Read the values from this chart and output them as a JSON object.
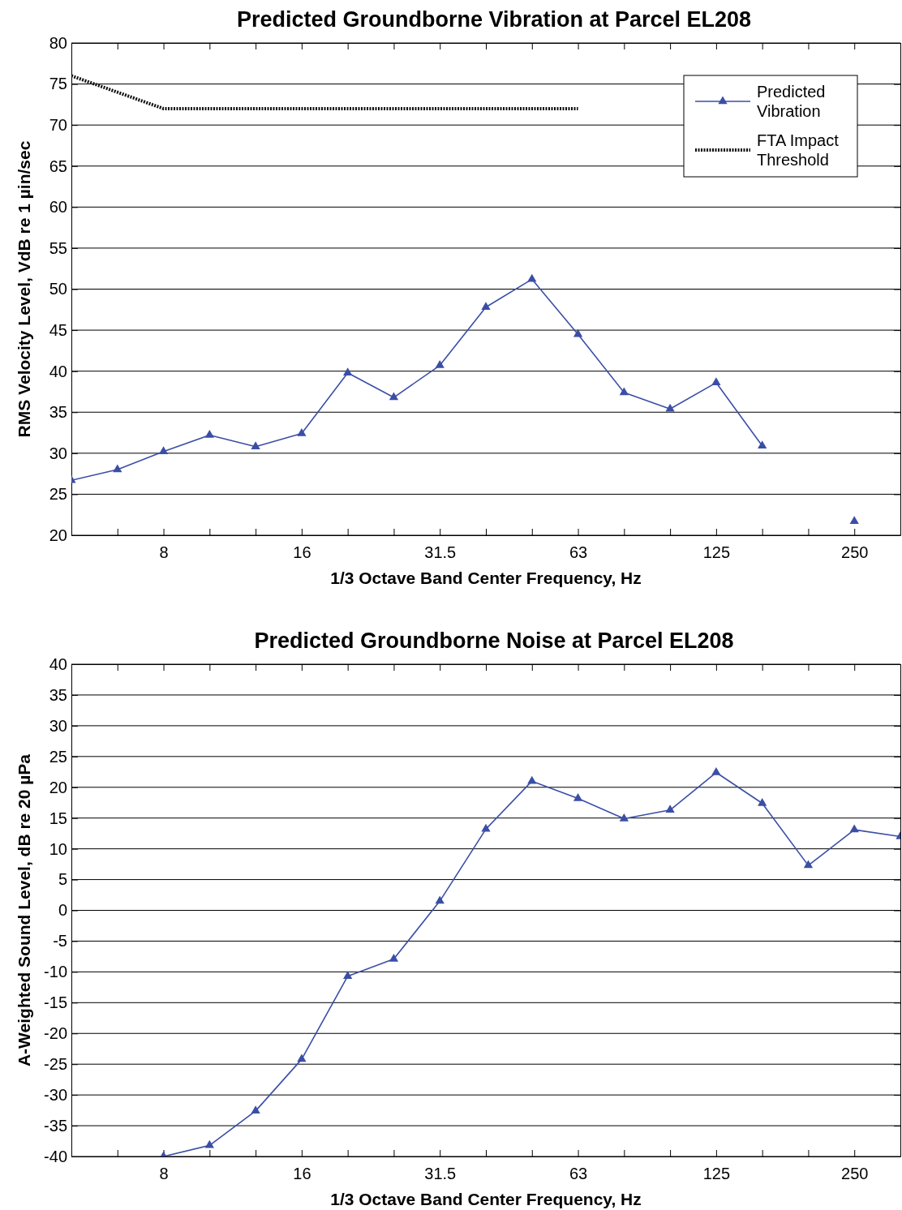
{
  "chart_data": [
    {
      "type": "line",
      "title": "Predicted Groundborne Vibration at Parcel EL208",
      "xlabel": "1/3 Octave Band Center Frequency, Hz",
      "ylabel": "RMS Velocity Level, VdB re 1 µin/sec",
      "categories": [
        null,
        null,
        "8",
        null,
        null,
        "16",
        null,
        null,
        "31.5",
        null,
        null,
        "63",
        null,
        null,
        "125",
        null,
        null,
        "250",
        null
      ],
      "series": [
        {
          "name": "Predicted Vibration",
          "color": "#3b4ea6",
          "marker": "triangle",
          "line_style": "solid",
          "values": [
            26.7,
            28,
            30.2,
            32.2,
            30.8,
            32.4,
            39.8,
            36.8,
            40.7,
            47.8,
            51.2,
            44.5,
            37.4,
            35.4,
            38.6,
            30.9,
            null,
            21.7,
            null
          ]
        },
        {
          "name": "FTA Impact Threshold",
          "color": "#111111",
          "marker": "none",
          "line_style": "dotted",
          "values": [
            76,
            74,
            72,
            72,
            72,
            72,
            72,
            72,
            72,
            72,
            72,
            72,
            null,
            null,
            null,
            null,
            null,
            null,
            null
          ]
        }
      ],
      "ylim": [
        20,
        80
      ],
      "yticks": [
        20,
        25,
        30,
        35,
        40,
        45,
        50,
        55,
        60,
        65,
        70,
        75,
        80
      ],
      "grid": "y",
      "legend": "top right"
    },
    {
      "type": "line",
      "title": "Predicted Groundborne Noise at Parcel EL208",
      "xlabel": "1/3 Octave Band Center Frequency, Hz",
      "ylabel": "A-Weighted Sound Level, dB re 20 µPa",
      "categories": [
        null,
        null,
        "8",
        null,
        null,
        "16",
        null,
        null,
        "31.5",
        null,
        null,
        "63",
        null,
        null,
        "125",
        null,
        null,
        "250",
        null
      ],
      "series": [
        {
          "color": "#3b4ea6",
          "marker": "triangle",
          "line_style": "solid",
          "values": [
            null,
            null,
            -40,
            -38.2,
            -32.6,
            -24.2,
            -10.7,
            -7.9,
            1.5,
            13.2,
            21,
            18.2,
            14.9,
            16.3,
            22.4,
            17.4,
            7.3,
            13.1,
            12
          ]
        }
      ],
      "ylim": [
        -40,
        40
      ],
      "yticks": [
        -40,
        -35,
        -30,
        -25,
        -20,
        -15,
        -10,
        -5,
        0,
        5,
        10,
        15,
        20,
        25,
        30,
        35,
        40
      ],
      "grid": "y",
      "legend": false
    }
  ]
}
